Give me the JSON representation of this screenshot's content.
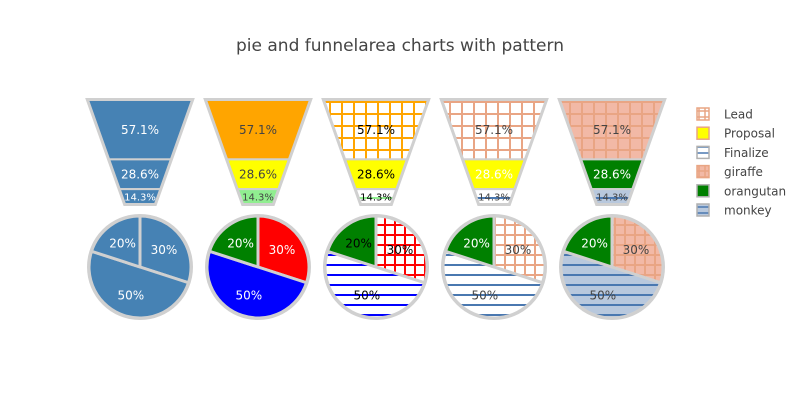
{
  "chart_data": {
    "type": "pie",
    "title": "pie and funnelarea charts with pattern",
    "legend": {
      "placement": "right",
      "entries": [
        {
          "name": "Lead",
          "color": "#ffffff",
          "pattern": "grid",
          "pattern_color": "#e9a584",
          "border": "#e9a584"
        },
        {
          "name": "Proposal",
          "color": "#ffff00",
          "pattern": "none",
          "border": "#e9a584"
        },
        {
          "name": "Finalize",
          "color": "#ffffff",
          "pattern": "hlines",
          "pattern_color": "#4a78b0",
          "border": "#b0b0b0"
        },
        {
          "name": "giraffe",
          "color": "#f2b9a6",
          "pattern": "grid",
          "pattern_color": "#e9a584",
          "border": "#e9a584"
        },
        {
          "name": "orangutan",
          "color": "#008000",
          "pattern": "none",
          "border": "#b0b0b0"
        },
        {
          "name": "monkey",
          "color": "#b8c8dd",
          "pattern": "hlines",
          "pattern_color": "#4a78b0",
          "border": "#b0b0b0"
        }
      ]
    },
    "funnels": [
      {
        "stages": [
          {
            "name": "Lead",
            "label": "57.1%",
            "fraction": 0.571,
            "color": "#4682b4",
            "pattern": "none",
            "text_color": "#ffffff"
          },
          {
            "name": "Proposal",
            "label": "28.6%",
            "fraction": 0.286,
            "color": "#4682b4",
            "pattern": "none",
            "text_color": "#ffffff"
          },
          {
            "name": "Finalize",
            "label": "14.3%",
            "fraction": 0.143,
            "color": "#4682b4",
            "pattern": "none",
            "text_color": "#ffffff"
          }
        ]
      },
      {
        "stages": [
          {
            "name": "Lead",
            "label": "57.1%",
            "fraction": 0.571,
            "color": "#ffa500",
            "pattern": "none",
            "text_color": "#444444"
          },
          {
            "name": "Proposal",
            "label": "28.6%",
            "fraction": 0.286,
            "color": "#ffff00",
            "pattern": "none",
            "text_color": "#444444"
          },
          {
            "name": "Finalize",
            "label": "14.3%",
            "fraction": 0.143,
            "color": "#90ee90",
            "pattern": "none",
            "text_color": "#444444"
          }
        ]
      },
      {
        "stages": [
          {
            "name": "Lead",
            "label": "57.1%",
            "fraction": 0.571,
            "color": "#ffffff",
            "pattern": "grid",
            "pattern_color": "#ffa500",
            "text_color": "#000000"
          },
          {
            "name": "Proposal",
            "label": "28.6%",
            "fraction": 0.286,
            "color": "#ffff00",
            "pattern": "none",
            "text_color": "#000000"
          },
          {
            "name": "Finalize",
            "label": "14.3%",
            "fraction": 0.143,
            "color": "#ffffff",
            "pattern": "hlines",
            "pattern_color": "#90ee90",
            "text_color": "#000000"
          }
        ]
      },
      {
        "stages": [
          {
            "name": "Lead",
            "label": "57.1%",
            "fraction": 0.571,
            "color": "#ffffff",
            "pattern": "grid",
            "pattern_color": "#e9a584",
            "text_color": "#444444"
          },
          {
            "name": "Proposal",
            "label": "28.6%",
            "fraction": 0.286,
            "color": "#ffff00",
            "pattern": "none",
            "text_color": "#ffffff"
          },
          {
            "name": "Finalize",
            "label": "14.3%",
            "fraction": 0.143,
            "color": "#ffffff",
            "pattern": "hlines",
            "pattern_color": "#4a78b0",
            "text_color": "#444444"
          }
        ]
      },
      {
        "stages": [
          {
            "name": "Lead",
            "label": "57.1%",
            "fraction": 0.571,
            "color": "#f2b9a6",
            "pattern": "grid",
            "pattern_color": "#e9a584",
            "text_color": "#444444"
          },
          {
            "name": "Proposal",
            "label": "28.6%",
            "fraction": 0.286,
            "color": "#008000",
            "pattern": "none",
            "text_color": "#ffffff"
          },
          {
            "name": "Finalize",
            "label": "14.3%",
            "fraction": 0.143,
            "color": "#b8c8dd",
            "pattern": "hlines",
            "pattern_color": "#4a78b0",
            "text_color": "#444444"
          }
        ]
      }
    ],
    "pies": [
      {
        "slices": [
          {
            "name": "giraffe",
            "label": "30%",
            "value": 30,
            "color": "#4682b4",
            "pattern": "none",
            "text_color": "#ffffff"
          },
          {
            "name": "monkey",
            "label": "50%",
            "value": 50,
            "color": "#4682b4",
            "pattern": "none",
            "text_color": "#ffffff"
          },
          {
            "name": "orangutan",
            "label": "20%",
            "value": 20,
            "color": "#4682b4",
            "pattern": "none",
            "text_color": "#ffffff"
          }
        ]
      },
      {
        "slices": [
          {
            "name": "giraffe",
            "label": "30%",
            "value": 30,
            "color": "#ff0000",
            "pattern": "none",
            "text_color": "#ffffff"
          },
          {
            "name": "monkey",
            "label": "50%",
            "value": 50,
            "color": "#0000ff",
            "pattern": "none",
            "text_color": "#ffffff"
          },
          {
            "name": "orangutan",
            "label": "20%",
            "value": 20,
            "color": "#008000",
            "pattern": "none",
            "text_color": "#ffffff"
          }
        ]
      },
      {
        "slices": [
          {
            "name": "giraffe",
            "label": "30%",
            "value": 30,
            "color": "#ffffff",
            "pattern": "grid",
            "pattern_color": "#ff0000",
            "text_color": "#000000"
          },
          {
            "name": "monkey",
            "label": "50%",
            "value": 50,
            "color": "#ffffff",
            "pattern": "hlines",
            "pattern_color": "#0000ff",
            "text_color": "#000000"
          },
          {
            "name": "orangutan",
            "label": "20%",
            "value": 20,
            "color": "#008000",
            "pattern": "none",
            "text_color": "#000000"
          }
        ]
      },
      {
        "slices": [
          {
            "name": "giraffe",
            "label": "30%",
            "value": 30,
            "color": "#ffffff",
            "pattern": "grid",
            "pattern_color": "#e9a584",
            "text_color": "#444444"
          },
          {
            "name": "monkey",
            "label": "50%",
            "value": 50,
            "color": "#ffffff",
            "pattern": "hlines",
            "pattern_color": "#4a78b0",
            "text_color": "#444444"
          },
          {
            "name": "orangutan",
            "label": "20%",
            "value": 20,
            "color": "#008000",
            "pattern": "none",
            "text_color": "#ffffff"
          }
        ]
      },
      {
        "slices": [
          {
            "name": "giraffe",
            "label": "30%",
            "value": 30,
            "color": "#f2b9a6",
            "pattern": "grid",
            "pattern_color": "#e9a584",
            "text_color": "#444444"
          },
          {
            "name": "monkey",
            "label": "50%",
            "value": 50,
            "color": "#b8c8dd",
            "pattern": "hlines",
            "pattern_color": "#4a78b0",
            "text_color": "#444444"
          },
          {
            "name": "orangutan",
            "label": "20%",
            "value": 20,
            "color": "#008000",
            "pattern": "none",
            "text_color": "#ffffff"
          }
        ]
      }
    ]
  }
}
